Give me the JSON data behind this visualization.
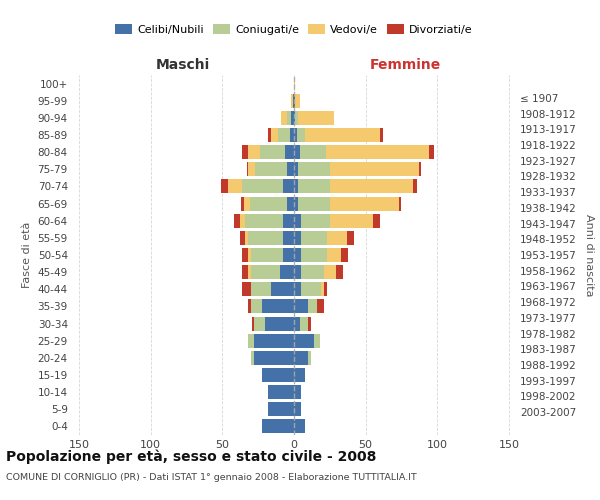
{
  "age_groups_bottom_to_top": [
    "0-4",
    "5-9",
    "10-14",
    "15-19",
    "20-24",
    "25-29",
    "30-34",
    "35-39",
    "40-44",
    "45-49",
    "50-54",
    "55-59",
    "60-64",
    "65-69",
    "70-74",
    "75-79",
    "80-84",
    "85-89",
    "90-94",
    "95-99",
    "100+"
  ],
  "birth_years_bottom_to_top": [
    "2003-2007",
    "1998-2002",
    "1993-1997",
    "1988-1992",
    "1983-1987",
    "1978-1982",
    "1973-1977",
    "1968-1972",
    "1963-1967",
    "1958-1962",
    "1953-1957",
    "1948-1952",
    "1943-1947",
    "1938-1942",
    "1933-1937",
    "1928-1932",
    "1923-1927",
    "1918-1922",
    "1913-1917",
    "1908-1912",
    "≤ 1907"
  ],
  "males_celibe": [
    22,
    18,
    18,
    22,
    28,
    28,
    20,
    22,
    16,
    10,
    8,
    8,
    8,
    5,
    8,
    5,
    6,
    3,
    2,
    1,
    0
  ],
  "males_coniugato": [
    0,
    0,
    0,
    0,
    2,
    4,
    8,
    8,
    14,
    20,
    22,
    24,
    26,
    26,
    28,
    22,
    18,
    8,
    3,
    0,
    0
  ],
  "males_vedovo": [
    0,
    0,
    0,
    0,
    0,
    0,
    0,
    0,
    0,
    2,
    2,
    2,
    4,
    4,
    10,
    5,
    8,
    5,
    4,
    1,
    0
  ],
  "males_divorziato": [
    0,
    0,
    0,
    0,
    0,
    0,
    1,
    2,
    6,
    4,
    4,
    4,
    4,
    2,
    5,
    1,
    4,
    2,
    0,
    0,
    0
  ],
  "females_nubile": [
    8,
    5,
    5,
    8,
    10,
    14,
    4,
    10,
    5,
    5,
    5,
    5,
    5,
    3,
    3,
    3,
    4,
    2,
    1,
    1,
    0
  ],
  "females_coniugata": [
    0,
    0,
    0,
    0,
    2,
    4,
    6,
    6,
    14,
    16,
    18,
    18,
    20,
    22,
    22,
    22,
    18,
    6,
    2,
    0,
    0
  ],
  "females_vedova": [
    0,
    0,
    0,
    0,
    0,
    0,
    0,
    0,
    2,
    8,
    10,
    14,
    30,
    48,
    58,
    62,
    72,
    52,
    25,
    3,
    1
  ],
  "females_divorziata": [
    0,
    0,
    0,
    0,
    0,
    0,
    2,
    5,
    2,
    5,
    5,
    5,
    5,
    2,
    3,
    2,
    4,
    2,
    0,
    0,
    0
  ],
  "colors": {
    "celibe": "#4472a8",
    "coniugato": "#b8cc96",
    "vedovo": "#f5c96e",
    "divorziato": "#c0392b"
  },
  "title": "Popolazione per età, sesso e stato civile - 2008",
  "subtitle": "COMUNE DI CORNIGLIO (PR) - Dati ISTAT 1° gennaio 2008 - Elaborazione TUTTITALIA.IT",
  "xlabel_left": "Maschi",
  "xlabel_right": "Femmine",
  "ylabel_left": "Fasce di età",
  "ylabel_right": "Anni di nascita",
  "xlim": 155,
  "bg_color": "#ffffff",
  "grid_color": "#cccccc",
  "bar_height": 0.82
}
